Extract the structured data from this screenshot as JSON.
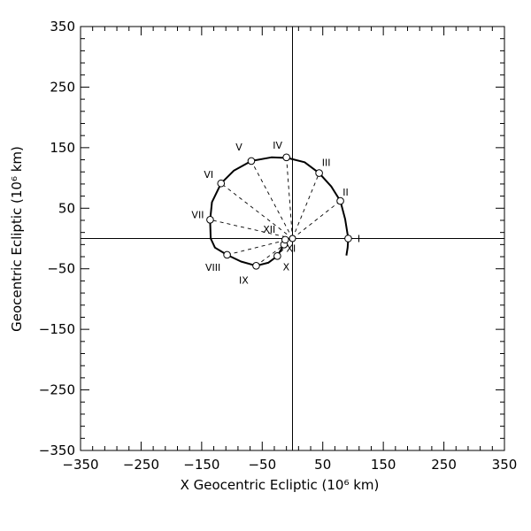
{
  "chart_data": {
    "type": "scatter",
    "xlabel": "X Geocentric Ecliptic (10⁶ km)",
    "ylabel": "Geocentric Ecliptic (10⁶ km)",
    "xlim": [
      -350,
      350
    ],
    "ylim": [
      -350,
      350
    ],
    "xticks": [
      -350,
      -250,
      -150,
      -50,
      50,
      150,
      250,
      350
    ],
    "yticks": [
      -350,
      -250,
      -150,
      -50,
      50,
      150,
      250,
      350
    ],
    "xtick_labels": [
      "−350",
      "−250",
      "−150",
      "−50",
      "50",
      "150",
      "250",
      "350"
    ],
    "ytick_labels": [
      "−350",
      "−250",
      "−150",
      "−50",
      "50",
      "150",
      "250",
      "350"
    ],
    "grid": false,
    "origin": {
      "x": 0,
      "y": 0
    },
    "trajectory": [
      {
        "x": 89,
        "y": -28
      },
      {
        "x": 91,
        "y": -15
      },
      {
        "x": 92,
        "y": 0
      },
      {
        "x": 87,
        "y": 32
      },
      {
        "x": 79,
        "y": 62
      },
      {
        "x": 64,
        "y": 86
      },
      {
        "x": 44,
        "y": 108
      },
      {
        "x": 20,
        "y": 126
      },
      {
        "x": -8,
        "y": 133
      },
      {
        "x": -35,
        "y": 134
      },
      {
        "x": -68,
        "y": 128
      },
      {
        "x": -97,
        "y": 112
      },
      {
        "x": -118,
        "y": 91
      },
      {
        "x": -133,
        "y": 60
      },
      {
        "x": -136,
        "y": 30
      },
      {
        "x": -135,
        "y": 0
      },
      {
        "x": -128,
        "y": -15
      },
      {
        "x": -108,
        "y": -27
      },
      {
        "x": -85,
        "y": -38
      },
      {
        "x": -60,
        "y": -45
      },
      {
        "x": -40,
        "y": -40
      },
      {
        "x": -25,
        "y": -29
      },
      {
        "x": -14,
        "y": -10
      },
      {
        "x": -12,
        "y": -2
      }
    ],
    "points": [
      {
        "label": "I",
        "x": 92,
        "y": 0
      },
      {
        "label": "II",
        "x": 79,
        "y": 62
      },
      {
        "label": "III",
        "x": 44,
        "y": 108
      },
      {
        "label": "IV",
        "x": -10,
        "y": 134
      },
      {
        "label": "V",
        "x": -68,
        "y": 128
      },
      {
        "label": "VI",
        "x": -118,
        "y": 91
      },
      {
        "label": "VII",
        "x": -136,
        "y": 31
      },
      {
        "label": "VIII",
        "x": -108,
        "y": -27
      },
      {
        "label": "IX",
        "x": -60,
        "y": -45
      },
      {
        "label": "X",
        "x": -25,
        "y": -29
      },
      {
        "label": "XI",
        "x": -14,
        "y": -10
      },
      {
        "label": "XII",
        "x": -12,
        "y": -2
      }
    ]
  }
}
